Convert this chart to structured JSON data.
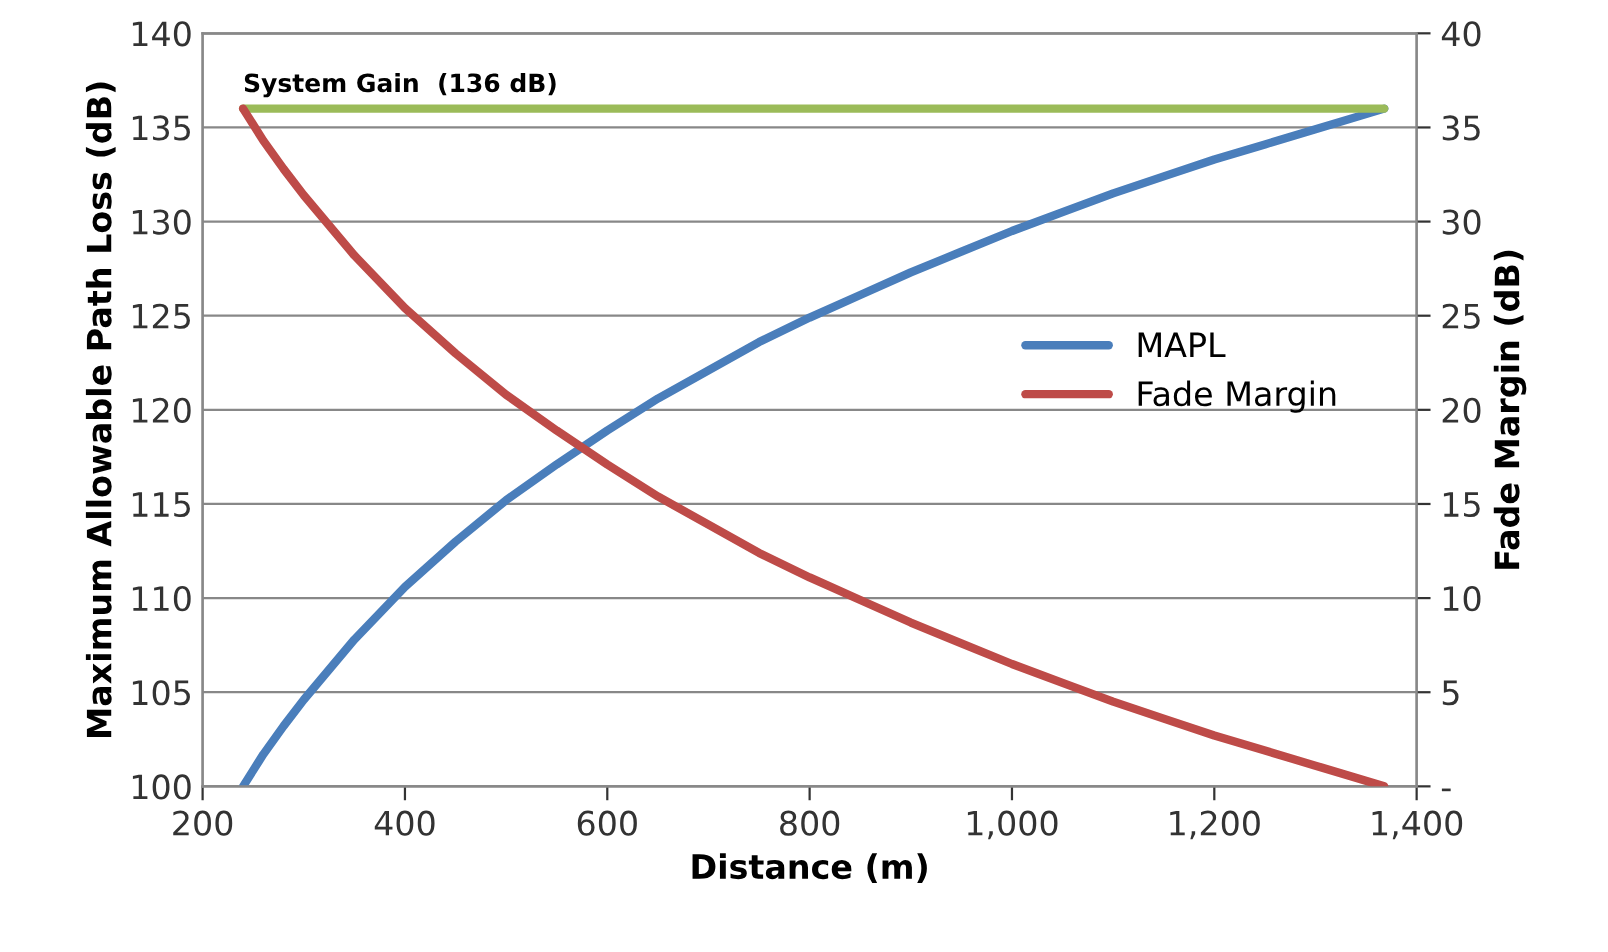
{
  "chart_data": {
    "type": "line",
    "xlabel": "Distance (m)",
    "ylabel": "Maximum Allowable Path Loss (dB)",
    "y2label": "Fade Margin (dB)",
    "xlim": [
      200,
      1400
    ],
    "xticks": [
      {
        "value": 200,
        "label": "200"
      },
      {
        "value": 400,
        "label": "400"
      },
      {
        "value": 600,
        "label": "600"
      },
      {
        "value": 800,
        "label": "800"
      },
      {
        "value": 1000,
        "label": "1,000"
      },
      {
        "value": 1200,
        "label": "1,200"
      },
      {
        "value": 1400,
        "label": "1,400"
      }
    ],
    "ylim": [
      100,
      140
    ],
    "yticks": [
      100,
      105,
      110,
      115,
      120,
      125,
      130,
      135,
      140
    ],
    "y2lim": [
      0,
      40
    ],
    "y2ticks": [
      {
        "value": 0,
        "label": "-"
      },
      5,
      10,
      15,
      20,
      25,
      30,
      35,
      40
    ],
    "grid": "y",
    "legend": "right",
    "marker": "none",
    "line_style": "solid",
    "x": [
      240,
      260,
      280,
      300,
      350,
      400,
      450,
      500,
      550,
      600,
      650,
      700,
      750,
      800,
      850,
      900,
      950,
      1000,
      1050,
      1100,
      1150,
      1200,
      1250,
      1300,
      1368
    ],
    "series": [
      {
        "name": "MAPL",
        "color": "#4a7ebb",
        "values": [
          100.0,
          101.7,
          103.2,
          104.6,
          107.8,
          110.6,
          113.0,
          115.2,
          117.1,
          118.9,
          120.6,
          122.1,
          123.6,
          124.9,
          126.1,
          127.3,
          128.4,
          129.5,
          130.5,
          131.5,
          132.4,
          133.3,
          134.1,
          134.9,
          136.0
        ]
      },
      {
        "name": "Fade Margin",
        "color": "#be4b48",
        "axis": "y2",
        "values": [
          36.0,
          34.3,
          32.8,
          31.4,
          28.2,
          25.4,
          23.0,
          20.8,
          18.9,
          17.1,
          15.4,
          13.9,
          12.4,
          11.1,
          9.9,
          8.7,
          7.6,
          6.5,
          5.5,
          4.5,
          3.6,
          2.7,
          1.9,
          1.1,
          0.0
        ]
      },
      {
        "color": "#9bbb59",
        "x": [
          240,
          1368
        ],
        "values": [
          136,
          136
        ]
      }
    ],
    "annotations": [
      {
        "text": "System Gain  (136 dB)",
        "x": 240,
        "y": 136
      }
    ]
  }
}
